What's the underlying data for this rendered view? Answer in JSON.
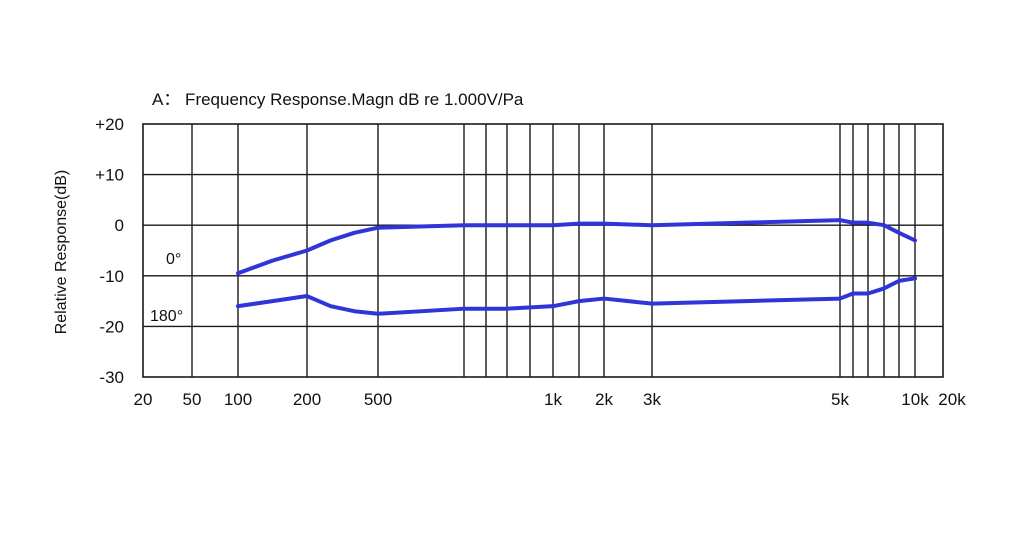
{
  "chart_data": {
    "type": "line",
    "title": "A： Frequency Response.Magn  dB re 1.000V/Pa",
    "xlabel": "",
    "ylabel": "Relative Response(dB)",
    "x_scale": "custom",
    "xlim": [
      20,
      20000
    ],
    "ylim": [
      -30,
      20
    ],
    "grid": true,
    "y_ticks": [
      {
        "value": 20,
        "label": "+20"
      },
      {
        "value": 10,
        "label": "+10"
      },
      {
        "value": 0,
        "label": "0"
      },
      {
        "value": -10,
        "label": "-10"
      },
      {
        "value": -20,
        "label": "-20"
      },
      {
        "value": -30,
        "label": "-30"
      }
    ],
    "x_tick_labels": [
      {
        "value": 20,
        "label": "20"
      },
      {
        "value": 50,
        "label": "50"
      },
      {
        "value": 100,
        "label": "100"
      },
      {
        "value": 200,
        "label": "200"
      },
      {
        "value": 500,
        "label": "500"
      },
      {
        "value": 1000,
        "label": "1k"
      },
      {
        "value": 2000,
        "label": "2k"
      },
      {
        "value": 3000,
        "label": "3k"
      },
      {
        "value": 5000,
        "label": "5k"
      },
      {
        "value": 10000,
        "label": "10k"
      },
      {
        "value": 20000,
        "label": "20k"
      }
    ],
    "x_grid_values": [
      50,
      100,
      200,
      500,
      600,
      700,
      800,
      900,
      1000,
      1500,
      2000,
      3000,
      5000,
      6000,
      7000,
      8000,
      9000,
      10000
    ],
    "series": [
      {
        "name": "0°",
        "color": "#2f35d8",
        "x": [
          100,
          150,
          200,
          300,
          400,
          500,
          600,
          800,
          1000,
          1500,
          2000,
          3000,
          4000,
          5000,
          6000,
          7000,
          8000,
          9000,
          10000
        ],
        "y": [
          -9.5,
          -7,
          -5,
          -3,
          -1.5,
          -0.5,
          0,
          0,
          0,
          0.3,
          0.3,
          0,
          0.5,
          1,
          0.5,
          0.5,
          0,
          -1.5,
          -3
        ]
      },
      {
        "name": "180°",
        "color": "#2f35d8",
        "x": [
          100,
          150,
          200,
          300,
          400,
          500,
          600,
          800,
          1000,
          1500,
          2000,
          3000,
          4000,
          5000,
          6000,
          7000,
          8000,
          9000,
          10000
        ],
        "y": [
          -16,
          -15,
          -14,
          -16,
          -17,
          -17.5,
          -16.5,
          -16.5,
          -16,
          -15,
          -14.5,
          -15.5,
          -15,
          -14.5,
          -13.5,
          -13.5,
          -12.5,
          -11,
          -10.5
        ]
      }
    ]
  }
}
